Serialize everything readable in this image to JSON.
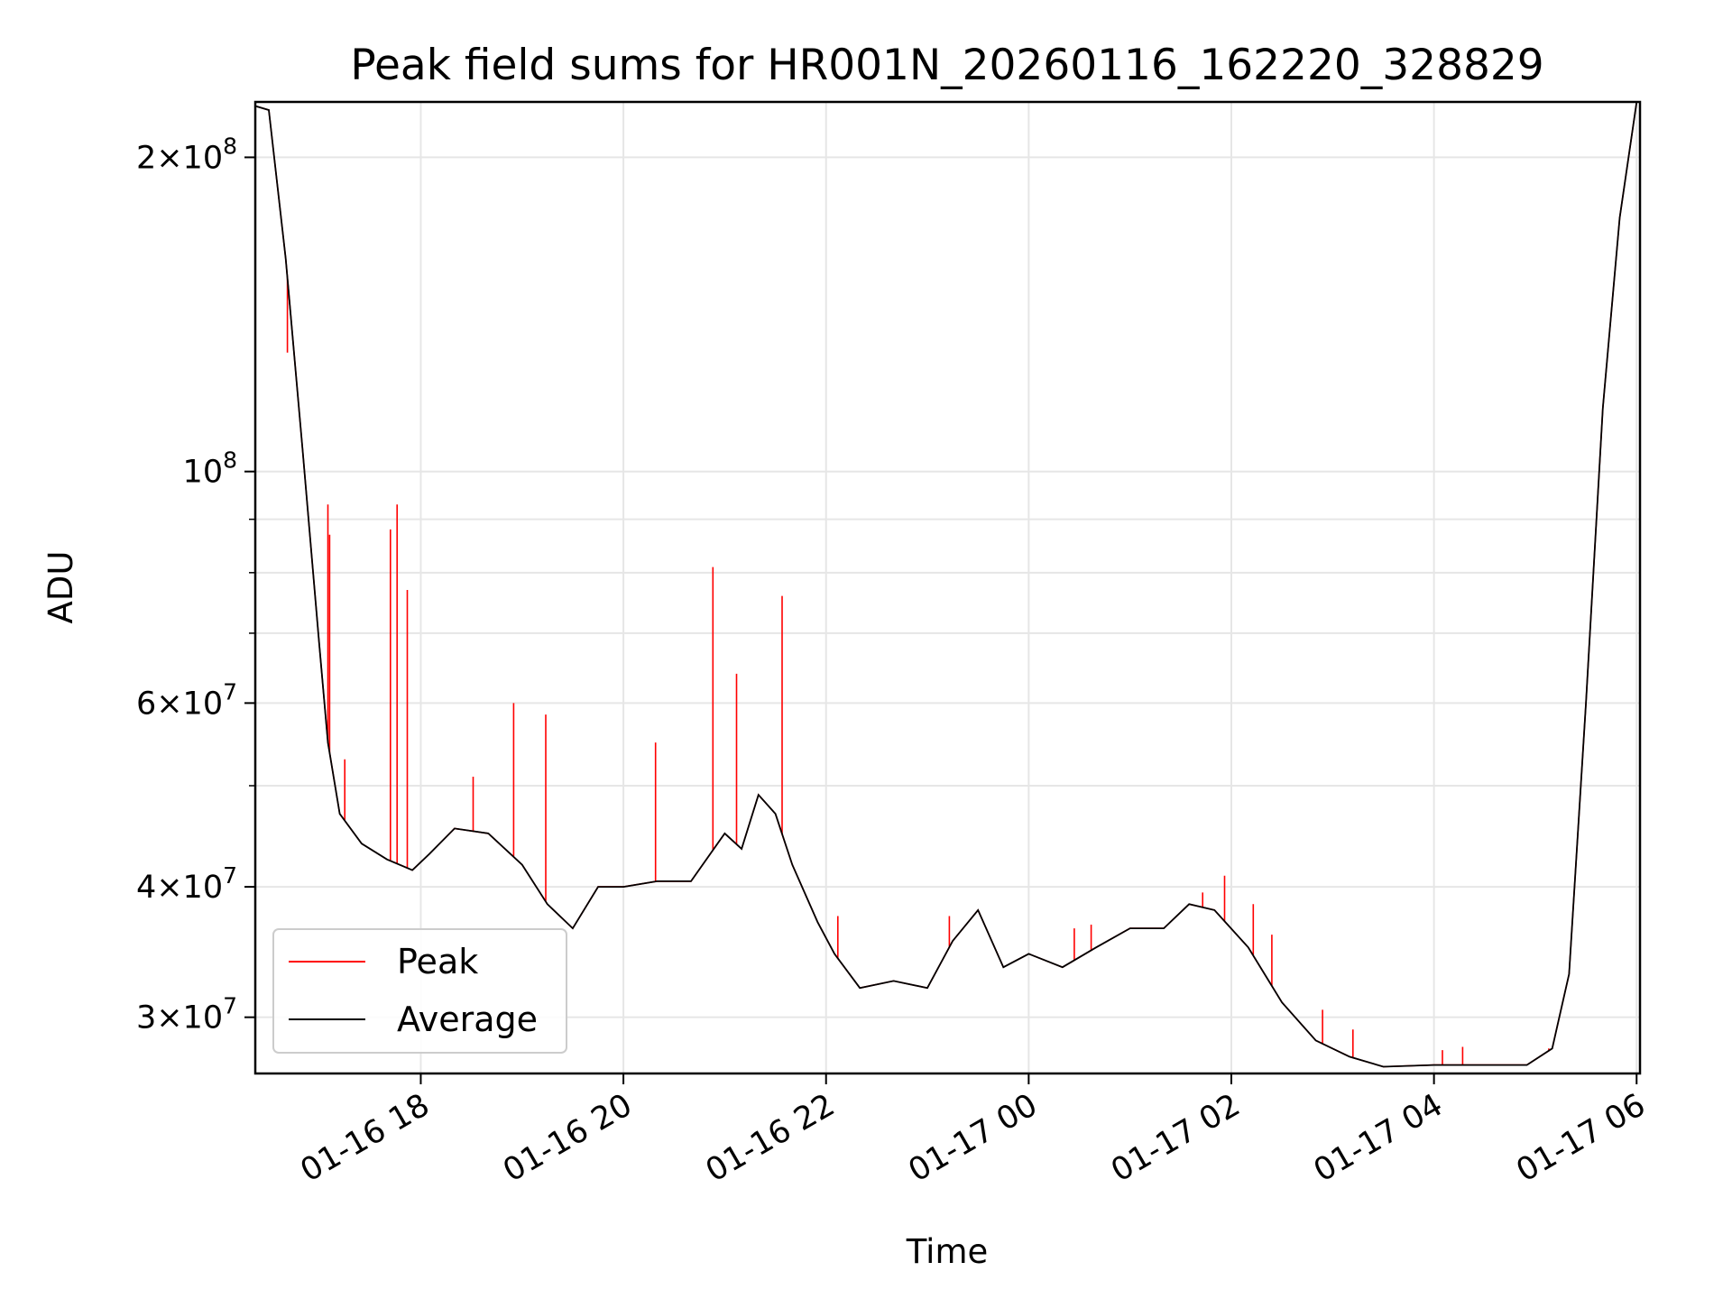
{
  "chart_data": {
    "type": "line",
    "title": "Peak field sums for HR001N_20260116_162220_328829",
    "xlabel": "Time",
    "ylabel": "ADU",
    "yscale": "log",
    "grid": true,
    "legend_location": "lower-left",
    "xlim": [
      "2026-01-16 16:22",
      "2026-01-17 06:02"
    ],
    "ylim": [
      26500000,
      226000000
    ],
    "x_ticks": [
      {
        "value": "2026-01-16 18:00",
        "label": "01-16 18"
      },
      {
        "value": "2026-01-16 20:00",
        "label": "01-16 20"
      },
      {
        "value": "2026-01-16 22:00",
        "label": "01-16 22"
      },
      {
        "value": "2026-01-17 00:00",
        "label": "01-17 00"
      },
      {
        "value": "2026-01-17 02:00",
        "label": "01-17 02"
      },
      {
        "value": "2026-01-17 04:00",
        "label": "01-17 04"
      },
      {
        "value": "2026-01-17 06:00",
        "label": "01-17 06"
      }
    ],
    "y_major_ticks": [
      {
        "value": 30000000,
        "label_mantissa": "3",
        "label_exp": "7"
      },
      {
        "value": 40000000,
        "label_mantissa": "4",
        "label_exp": "7"
      },
      {
        "value": 60000000,
        "label_mantissa": "6",
        "label_exp": "7"
      },
      {
        "value": 100000000,
        "label_mantissa": "",
        "label_exp": "8"
      },
      {
        "value": 200000000,
        "label_mantissa": "2",
        "label_exp": "8"
      }
    ],
    "y_minor_ticks": [
      50000000,
      70000000,
      80000000,
      90000000
    ],
    "colors": {
      "Peak": "#ff0000",
      "Average": "#000000"
    },
    "series": [
      {
        "name": "Average",
        "points": [
          [
            "2026-01-16 16:22",
            224000000
          ],
          [
            "2026-01-16 16:30",
            222000000
          ],
          [
            "2026-01-16 16:40",
            160000000
          ],
          [
            "2026-01-16 16:50",
            105000000
          ],
          [
            "2026-01-16 17:00",
            68000000
          ],
          [
            "2026-01-16 17:05",
            55000000
          ],
          [
            "2026-01-16 17:12",
            47000000
          ],
          [
            "2026-01-16 17:25",
            44000000
          ],
          [
            "2026-01-16 17:40",
            42500000
          ],
          [
            "2026-01-16 17:55",
            41500000
          ],
          [
            "2026-01-16 18:05",
            43000000
          ],
          [
            "2026-01-16 18:20",
            45500000
          ],
          [
            "2026-01-16 18:40",
            45000000
          ],
          [
            "2026-01-16 19:00",
            42000000
          ],
          [
            "2026-01-16 19:15",
            38500000
          ],
          [
            "2026-01-16 19:30",
            36500000
          ],
          [
            "2026-01-16 19:45",
            40000000
          ],
          [
            "2026-01-16 20:00",
            40000000
          ],
          [
            "2026-01-16 20:20",
            40500000
          ],
          [
            "2026-01-16 20:40",
            40500000
          ],
          [
            "2026-01-16 21:00",
            45000000
          ],
          [
            "2026-01-16 21:10",
            43500000
          ],
          [
            "2026-01-16 21:20",
            49000000
          ],
          [
            "2026-01-16 21:30",
            47000000
          ],
          [
            "2026-01-16 21:40",
            42000000
          ],
          [
            "2026-01-16 21:55",
            37000000
          ],
          [
            "2026-01-16 22:05",
            34500000
          ],
          [
            "2026-01-16 22:20",
            32000000
          ],
          [
            "2026-01-16 22:40",
            32500000
          ],
          [
            "2026-01-16 23:00",
            32000000
          ],
          [
            "2026-01-16 23:15",
            35500000
          ],
          [
            "2026-01-16 23:30",
            38000000
          ],
          [
            "2026-01-16 23:45",
            33500000
          ],
          [
            "2026-01-17 00:00",
            34500000
          ],
          [
            "2026-01-17 00:20",
            33500000
          ],
          [
            "2026-01-17 00:40",
            35000000
          ],
          [
            "2026-01-17 01:00",
            36500000
          ],
          [
            "2026-01-17 01:20",
            36500000
          ],
          [
            "2026-01-17 01:35",
            38500000
          ],
          [
            "2026-01-17 01:50",
            38000000
          ],
          [
            "2026-01-17 02:10",
            35000000
          ],
          [
            "2026-01-17 02:30",
            31000000
          ],
          [
            "2026-01-17 02:50",
            28500000
          ],
          [
            "2026-01-17 03:10",
            27500000
          ],
          [
            "2026-01-17 03:30",
            26900000
          ],
          [
            "2026-01-17 04:00",
            27000000
          ],
          [
            "2026-01-17 04:30",
            27000000
          ],
          [
            "2026-01-17 04:55",
            27000000
          ],
          [
            "2026-01-17 05:10",
            28000000
          ],
          [
            "2026-01-17 05:20",
            33000000
          ],
          [
            "2026-01-17 05:30",
            60000000
          ],
          [
            "2026-01-17 05:40",
            115000000
          ],
          [
            "2026-01-17 05:50",
            175000000
          ],
          [
            "2026-01-17 06:00",
            226000000
          ]
        ]
      },
      {
        "name": "Peak",
        "spikes": [
          [
            "2026-01-16 16:41",
            130000000
          ],
          [
            "2026-01-16 17:05",
            93000000
          ],
          [
            "2026-01-16 17:06",
            87000000
          ],
          [
            "2026-01-16 17:15",
            53000000
          ],
          [
            "2026-01-16 17:42",
            88000000
          ],
          [
            "2026-01-16 17:46",
            93000000
          ],
          [
            "2026-01-16 17:52",
            77000000
          ],
          [
            "2026-01-16 18:31",
            51000000
          ],
          [
            "2026-01-16 18:55",
            60000000
          ],
          [
            "2026-01-16 19:14",
            58500000
          ],
          [
            "2026-01-16 20:19",
            55000000
          ],
          [
            "2026-01-16 20:53",
            81000000
          ],
          [
            "2026-01-16 21:07",
            64000000
          ],
          [
            "2026-01-16 21:34",
            76000000
          ],
          [
            "2026-01-16 22:07",
            37500000
          ],
          [
            "2026-01-16 23:13",
            37500000
          ],
          [
            "2026-01-17 00:27",
            36500000
          ],
          [
            "2026-01-17 00:37",
            36800000
          ],
          [
            "2026-01-17 01:35",
            38500000
          ],
          [
            "2026-01-17 01:43",
            39500000
          ],
          [
            "2026-01-17 01:56",
            41000000
          ],
          [
            "2026-01-17 02:13",
            38500000
          ],
          [
            "2026-01-17 02:24",
            36000000
          ],
          [
            "2026-01-17 02:54",
            30500000
          ],
          [
            "2026-01-17 03:12",
            29200000
          ],
          [
            "2026-01-17 04:05",
            27900000
          ],
          [
            "2026-01-17 04:17",
            28100000
          ],
          [
            "2026-01-17 05:08",
            28000000
          ]
        ]
      }
    ]
  }
}
